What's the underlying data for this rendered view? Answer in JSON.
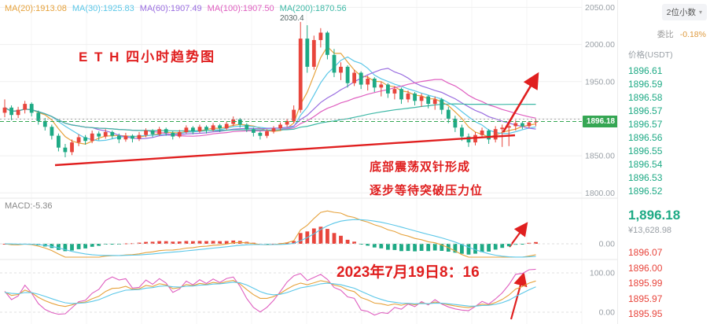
{
  "colors": {
    "up": "#e8453c",
    "down": "#1eaa85",
    "annotation": "#e01f1f",
    "price_tag_bg": "#35a653",
    "dif": "#e6a23c",
    "dea": "#5bc7e8",
    "k": "#e6a23c",
    "d": "#5bc7e8",
    "j": "#df5fc0"
  },
  "indicators": {
    "ma_labels": [
      {
        "text": "MA(20):1913.08",
        "color": "#e6a23c",
        "window": 5
      },
      {
        "text": "MA(30):1925.83",
        "color": "#5bc7e8",
        "window": 8
      },
      {
        "text": "MA(60):1907.49",
        "color": "#9a6ee0",
        "window": 14
      },
      {
        "text": "MA(100):1907.50",
        "color": "#df5fc0",
        "window": 22
      },
      {
        "text": "MA(200):1870.56",
        "color": "#3db8a6",
        "window": 45
      }
    ],
    "macd_label": "MACD:-5.36"
  },
  "annotations": {
    "title": "E T H 四小时趋势图",
    "peak": "2030.4",
    "note_line1": "底部震荡双针形成",
    "note_line2": "逐步等待突破压力位",
    "datetime": "2023年7月19日8：16"
  },
  "axis": {
    "last_price_label": "1896.18"
  },
  "order_book": {
    "decimals_label": "2位小数",
    "weibi_label": "委比",
    "weibi_value": "-0.18%",
    "price_header": "价格(USDT)",
    "asks": [
      "1896.61",
      "1896.59",
      "1896.58",
      "1896.57",
      "1896.57",
      "1896.56",
      "1896.55",
      "1896.54",
      "1896.53",
      "1896.52"
    ],
    "last_price": "1,896.18",
    "last_cny": "¥13,628.98",
    "bids": [
      "1896.07",
      "1896.00",
      "1895.99",
      "1895.97",
      "1895.95"
    ]
  },
  "chart_data": {
    "type": "candlestick",
    "ylim": [
      1795,
      2060
    ],
    "y_ticks": [
      2050,
      2000,
      1950,
      1900,
      1850,
      1800
    ],
    "macd_zero_tick": "0.00",
    "osc_ticks": [
      "100.00",
      "0.00"
    ],
    "last_price": 1896.18,
    "candles": [
      [
        1908,
        1926,
        1902,
        1915
      ],
      [
        1915,
        1918,
        1898,
        1905
      ],
      [
        1905,
        1916,
        1901,
        1912
      ],
      [
        1912,
        1924,
        1907,
        1920
      ],
      [
        1920,
        1922,
        1903,
        1908
      ],
      [
        1908,
        1911,
        1892,
        1897
      ],
      [
        1897,
        1901,
        1884,
        1889
      ],
      [
        1889,
        1892,
        1872,
        1877
      ],
      [
        1877,
        1880,
        1856,
        1861
      ],
      [
        1861,
        1866,
        1848,
        1855
      ],
      [
        1855,
        1872,
        1851,
        1868
      ],
      [
        1868,
        1879,
        1863,
        1875
      ],
      [
        1875,
        1878,
        1865,
        1870
      ],
      [
        1870,
        1884,
        1867,
        1880
      ],
      [
        1880,
        1883,
        1871,
        1876
      ],
      [
        1876,
        1886,
        1873,
        1882
      ],
      [
        1882,
        1884,
        1873,
        1877
      ],
      [
        1877,
        1880,
        1867,
        1872
      ],
      [
        1872,
        1881,
        1869,
        1877
      ],
      [
        1877,
        1879,
        1868,
        1873
      ],
      [
        1873,
        1882,
        1870,
        1878
      ],
      [
        1878,
        1887,
        1875,
        1884
      ],
      [
        1884,
        1886,
        1875,
        1879
      ],
      [
        1879,
        1889,
        1877,
        1886
      ],
      [
        1886,
        1888,
        1877,
        1881
      ],
      [
        1881,
        1883,
        1872,
        1876
      ],
      [
        1876,
        1885,
        1874,
        1882
      ],
      [
        1882,
        1891,
        1880,
        1888
      ],
      [
        1888,
        1890,
        1879,
        1883
      ],
      [
        1883,
        1892,
        1881,
        1889
      ],
      [
        1889,
        1891,
        1880,
        1885
      ],
      [
        1885,
        1894,
        1883,
        1891
      ],
      [
        1891,
        1893,
        1882,
        1887
      ],
      [
        1887,
        1896,
        1885,
        1893
      ],
      [
        1893,
        1903,
        1890,
        1899
      ],
      [
        1899,
        1901,
        1888,
        1892
      ],
      [
        1892,
        1894,
        1882,
        1886
      ],
      [
        1886,
        1888,
        1876,
        1881
      ],
      [
        1881,
        1883,
        1872,
        1877
      ],
      [
        1877,
        1886,
        1874,
        1883
      ],
      [
        1883,
        1890,
        1880,
        1887
      ],
      [
        1887,
        1895,
        1884,
        1892
      ],
      [
        1892,
        1900,
        1889,
        1897
      ],
      [
        1897,
        1918,
        1894,
        1912
      ],
      [
        1912,
        2030.4,
        1908,
        2008
      ],
      [
        2008,
        2026,
        1962,
        1970
      ],
      [
        1970,
        2012,
        1966,
        2006
      ],
      [
        2006,
        2022,
        1996,
        2016
      ],
      [
        2016,
        2018,
        1980,
        1986
      ],
      [
        1986,
        1994,
        1956,
        1962
      ],
      [
        1962,
        1976,
        1952,
        1970
      ],
      [
        1970,
        1972,
        1942,
        1948
      ],
      [
        1948,
        1966,
        1944,
        1962
      ],
      [
        1962,
        1964,
        1940,
        1946
      ],
      [
        1946,
        1958,
        1938,
        1954
      ],
      [
        1954,
        1956,
        1936,
        1942
      ],
      [
        1942,
        1950,
        1930,
        1946
      ],
      [
        1946,
        1948,
        1928,
        1934
      ],
      [
        1934,
        1944,
        1926,
        1940
      ],
      [
        1940,
        1942,
        1920,
        1926
      ],
      [
        1926,
        1938,
        1922,
        1934
      ],
      [
        1934,
        1936,
        1918,
        1924
      ],
      [
        1924,
        1934,
        1916,
        1930
      ],
      [
        1930,
        1932,
        1914,
        1920
      ],
      [
        1920,
        1930,
        1912,
        1926
      ],
      [
        1926,
        1928,
        1906,
        1912
      ],
      [
        1912,
        1916,
        1894,
        1900
      ],
      [
        1900,
        1904,
        1882,
        1888
      ],
      [
        1888,
        1892,
        1870,
        1876
      ],
      [
        1876,
        1880,
        1862,
        1868
      ],
      [
        1868,
        1882,
        1864,
        1878
      ],
      [
        1878,
        1888,
        1874,
        1884
      ],
      [
        1884,
        1886,
        1866,
        1872
      ],
      [
        1872,
        1890,
        1868,
        1886
      ],
      [
        1886,
        1892,
        1862,
        1888
      ],
      [
        1888,
        1894,
        1863,
        1890
      ],
      [
        1890,
        1898,
        1884,
        1894
      ],
      [
        1894,
        1896,
        1886,
        1890
      ],
      [
        1890,
        1897,
        1887,
        1895
      ],
      [
        1895,
        1900,
        1890,
        1896.18
      ]
    ]
  }
}
